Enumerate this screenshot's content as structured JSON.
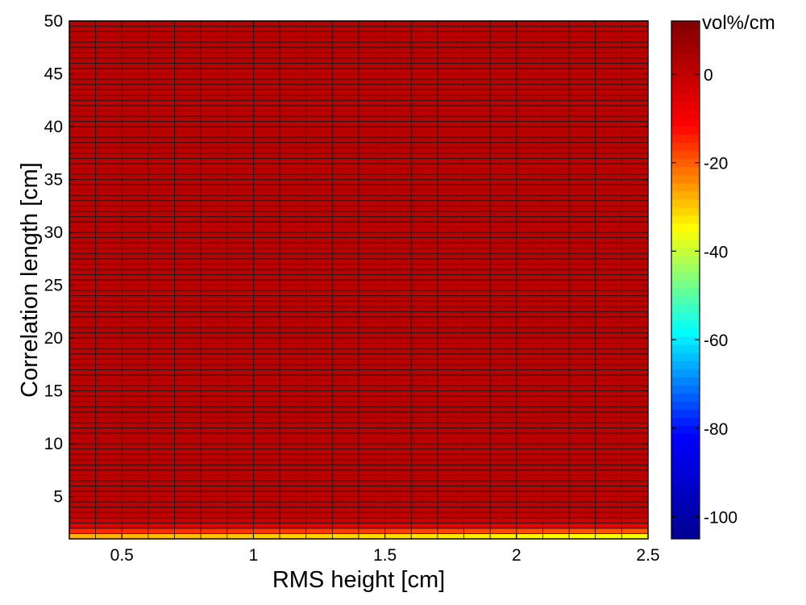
{
  "chart_data": {
    "type": "heatmap",
    "xlabel": "RMS height [cm]",
    "ylabel": "Correlation length [cm]",
    "xlim": [
      0.3,
      2.5
    ],
    "ylim": [
      1,
      50
    ],
    "x_ticks": [
      "0.5",
      "1",
      "1.5",
      "2",
      "2.5"
    ],
    "x_tick_values": [
      0.5,
      1,
      1.5,
      2,
      2.5
    ],
    "y_ticks": [
      "5",
      "10",
      "15",
      "20",
      "25",
      "30",
      "35",
      "40",
      "45",
      "50"
    ],
    "y_tick_values": [
      5,
      10,
      15,
      20,
      25,
      30,
      35,
      40,
      45,
      50
    ],
    "grid": false,
    "x_cells": {
      "start": 0.3,
      "step": 0.1,
      "count": 22
    },
    "y_cells": {
      "start": 1,
      "step": 0.5,
      "count": 98
    },
    "value_profile_by_y": [
      {
        "y": 1.0,
        "value": -33
      },
      {
        "y": 1.5,
        "value": -22
      },
      {
        "y": 2.0,
        "value": -8
      },
      {
        "y": 3.0,
        "value": 0
      },
      {
        "y": 5.0,
        "value": 1
      },
      {
        "y": 50.0,
        "value": 1
      }
    ],
    "value_at_y1_by_x": [
      {
        "x": 0.3,
        "value": -33
      },
      {
        "x": 1.5,
        "value": -38
      },
      {
        "x": 2.5,
        "value": -43
      }
    ],
    "colorbar": {
      "unit": "vol%/cm",
      "clim": [
        -105,
        12
      ],
      "ticks": [
        "0",
        "-20",
        "-40",
        "-60",
        "-80",
        "-100"
      ],
      "tick_values": [
        0,
        -20,
        -40,
        -60,
        -80,
        -100
      ],
      "colormap": "jet",
      "colormap_stops": [
        "#00008f",
        "#0000ff",
        "#00ffff",
        "#ffff00",
        "#ff0000",
        "#800000"
      ]
    }
  }
}
